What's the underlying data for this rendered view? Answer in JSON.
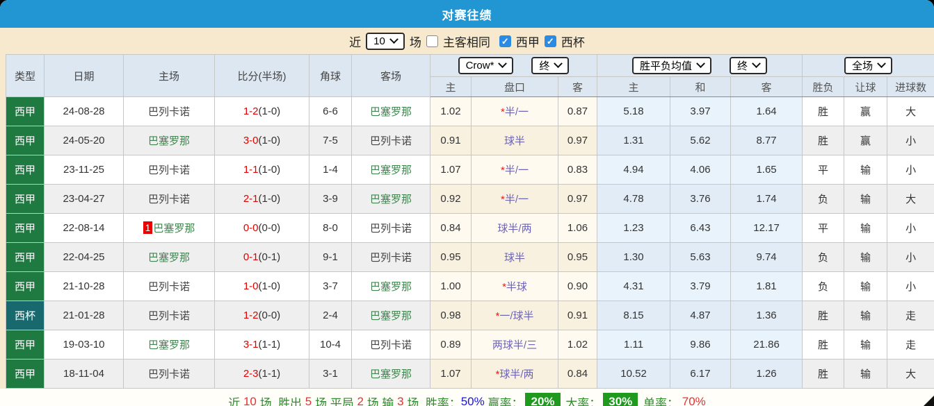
{
  "title": "对赛往绩",
  "colors": {
    "title_bar": "#2196d3",
    "filter_bar_bg": "#f7e9cd",
    "header_bg": "#dde7f1",
    "laliga_bg": "#1e7a40",
    "copa_bg": "#17696e",
    "barca_green": "#40854f",
    "score_red": "#e00000",
    "handicap_purple": "#6c63b5",
    "draw_blue": "#3a6cc8",
    "win_red": "#e84444",
    "pink_red": "#f4477c",
    "loss_green": "#3d7a3d",
    "level_blue": "#4a49e8",
    "badge_green": "#1f9a1f",
    "rate_blue": "#1414e6"
  },
  "filter": {
    "near_label": "近",
    "recent_count": "10",
    "games_label": "场",
    "same_venue_label": "主客相同",
    "same_venue_checked": false,
    "league1_label": "西甲",
    "league1_checked": true,
    "league2_label": "西杯",
    "league2_checked": true
  },
  "header": {
    "type": "类型",
    "date": "日期",
    "home": "主场",
    "score": "比分(半场)",
    "corner": "角球",
    "away": "客场",
    "odds_company_select": "Crow*",
    "odds_final_select": "终",
    "avg_select": "胜平负均值",
    "avg_final_select": "终",
    "fulltime_select": "全场",
    "sub": [
      "主",
      "盘口",
      "客",
      "主",
      "和",
      "客",
      "胜负",
      "让球",
      "进球数"
    ]
  },
  "rows": [
    {
      "league": "liga",
      "type": "西甲",
      "date": "24-08-28",
      "home": "巴列卡诺",
      "home_is_barca": false,
      "badge": "",
      "score": "1-2",
      "half": "(1-0)",
      "corner": "6-6",
      "away": "巴塞罗那",
      "away_is_barca": true,
      "o_home": "1.02",
      "handicap": "*半/一",
      "o_away": "0.87",
      "a_home": "5.18",
      "a_draw": "3.97",
      "a_away": "1.64",
      "res": "胜",
      "res_c": "red",
      "let": "赢",
      "let_c": "pink",
      "goal": "大",
      "goal_c": "red"
    },
    {
      "league": "liga",
      "type": "西甲",
      "date": "24-05-20",
      "home": "巴塞罗那",
      "home_is_barca": true,
      "badge": "",
      "score": "3-0",
      "half": "(1-0)",
      "corner": "7-5",
      "away": "巴列卡诺",
      "away_is_barca": false,
      "o_home": "0.91",
      "handicap": "球半",
      "o_away": "0.97",
      "a_home": "1.31",
      "a_draw": "5.62",
      "a_away": "8.77",
      "res": "胜",
      "res_c": "red",
      "let": "赢",
      "let_c": "pink",
      "goal": "小",
      "goal_c": "green"
    },
    {
      "league": "liga",
      "type": "西甲",
      "date": "23-11-25",
      "home": "巴列卡诺",
      "home_is_barca": false,
      "badge": "",
      "score": "1-1",
      "half": "(1-0)",
      "corner": "1-4",
      "away": "巴塞罗那",
      "away_is_barca": true,
      "o_home": "1.07",
      "handicap": "*半/一",
      "o_away": "0.83",
      "a_home": "4.94",
      "a_draw": "4.06",
      "a_away": "1.65",
      "res": "平",
      "res_c": "blue",
      "let": "输",
      "let_c": "green",
      "goal": "小",
      "goal_c": "green"
    },
    {
      "league": "liga",
      "type": "西甲",
      "date": "23-04-27",
      "home": "巴列卡诺",
      "home_is_barca": false,
      "badge": "",
      "score": "2-1",
      "half": "(1-0)",
      "corner": "3-9",
      "away": "巴塞罗那",
      "away_is_barca": true,
      "o_home": "0.92",
      "handicap": "*半/一",
      "o_away": "0.97",
      "a_home": "4.78",
      "a_draw": "3.76",
      "a_away": "1.74",
      "res": "负",
      "res_c": "green",
      "let": "输",
      "let_c": "green",
      "goal": "大",
      "goal_c": "red"
    },
    {
      "league": "liga",
      "type": "西甲",
      "date": "22-08-14",
      "home": "巴塞罗那",
      "home_is_barca": true,
      "badge": "1",
      "score": "0-0",
      "half": "(0-0)",
      "corner": "8-0",
      "away": "巴列卡诺",
      "away_is_barca": false,
      "o_home": "0.84",
      "handicap": "球半/两",
      "o_away": "1.06",
      "a_home": "1.23",
      "a_draw": "6.43",
      "a_away": "12.17",
      "res": "平",
      "res_c": "blue",
      "let": "输",
      "let_c": "green",
      "goal": "小",
      "goal_c": "green"
    },
    {
      "league": "liga",
      "type": "西甲",
      "date": "22-04-25",
      "home": "巴塞罗那",
      "home_is_barca": true,
      "badge": "",
      "score": "0-1",
      "half": "(0-1)",
      "corner": "9-1",
      "away": "巴列卡诺",
      "away_is_barca": false,
      "o_home": "0.95",
      "handicap": "球半",
      "o_away": "0.95",
      "a_home": "1.30",
      "a_draw": "5.63",
      "a_away": "9.74",
      "res": "负",
      "res_c": "green",
      "let": "输",
      "let_c": "green",
      "goal": "小",
      "goal_c": "green"
    },
    {
      "league": "liga",
      "type": "西甲",
      "date": "21-10-28",
      "home": "巴列卡诺",
      "home_is_barca": false,
      "badge": "",
      "score": "1-0",
      "half": "(1-0)",
      "corner": "3-7",
      "away": "巴塞罗那",
      "away_is_barca": true,
      "o_home": "1.00",
      "handicap": "*半球",
      "o_away": "0.90",
      "a_home": "4.31",
      "a_draw": "3.79",
      "a_away": "1.81",
      "res": "负",
      "res_c": "green",
      "let": "输",
      "let_c": "green",
      "goal": "小",
      "goal_c": "green"
    },
    {
      "league": "cup",
      "type": "西杯",
      "date": "21-01-28",
      "home": "巴列卡诺",
      "home_is_barca": false,
      "badge": "",
      "score": "1-2",
      "half": "(0-0)",
      "corner": "2-4",
      "away": "巴塞罗那",
      "away_is_barca": true,
      "o_home": "0.98",
      "handicap": "*一/球半",
      "o_away": "0.91",
      "a_home": "8.15",
      "a_draw": "4.87",
      "a_away": "1.36",
      "res": "胜",
      "res_c": "red",
      "let": "输",
      "let_c": "green",
      "goal": "走",
      "goal_c": "blue"
    },
    {
      "league": "liga",
      "type": "西甲",
      "date": "19-03-10",
      "home": "巴塞罗那",
      "home_is_barca": true,
      "badge": "",
      "score": "3-1",
      "half": "(1-1)",
      "corner": "10-4",
      "away": "巴列卡诺",
      "away_is_barca": false,
      "o_home": "0.89",
      "handicap": "两球半/三",
      "o_away": "1.02",
      "a_home": "1.11",
      "a_draw": "9.86",
      "a_away": "21.86",
      "res": "胜",
      "res_c": "red",
      "let": "输",
      "let_c": "green",
      "goal": "走",
      "goal_c": "blue"
    },
    {
      "league": "liga",
      "type": "西甲",
      "date": "18-11-04",
      "home": "巴列卡诺",
      "home_is_barca": false,
      "badge": "",
      "score": "2-3",
      "half": "(1-1)",
      "corner": "3-1",
      "away": "巴塞罗那",
      "away_is_barca": true,
      "o_home": "1.07",
      "handicap": "*球半/两",
      "o_away": "0.84",
      "a_home": "10.52",
      "a_draw": "6.17",
      "a_away": "1.26",
      "res": "胜",
      "res_c": "red",
      "let": "输",
      "let_c": "green",
      "goal": "大",
      "goal_c": "red"
    }
  ],
  "footer": {
    "parts": [
      {
        "text": "近 ",
        "style": "green"
      },
      {
        "text": "10",
        "style": "red"
      },
      {
        "text": " 场, ",
        "style": "green"
      },
      {
        "text": "胜出 ",
        "style": "green"
      },
      {
        "text": "5",
        "style": "red"
      },
      {
        "text": " 场,平局 ",
        "style": "green"
      },
      {
        "text": "2",
        "style": "red"
      },
      {
        "text": " 场,输 ",
        "style": "green"
      },
      {
        "text": "3",
        "style": "red"
      },
      {
        "text": " 场, ",
        "style": "green"
      },
      {
        "text": "胜率：",
        "style": "green"
      },
      {
        "text": "50%",
        "style": "blue"
      },
      {
        "text": " 赢率：",
        "style": "green"
      },
      {
        "text": "20%",
        "style": "badge"
      },
      {
        "text": " 大率：",
        "style": "green"
      },
      {
        "text": "30%",
        "style": "badge"
      },
      {
        "text": " 单率：",
        "style": "green"
      },
      {
        "text": " 70%",
        "style": "red"
      }
    ]
  }
}
